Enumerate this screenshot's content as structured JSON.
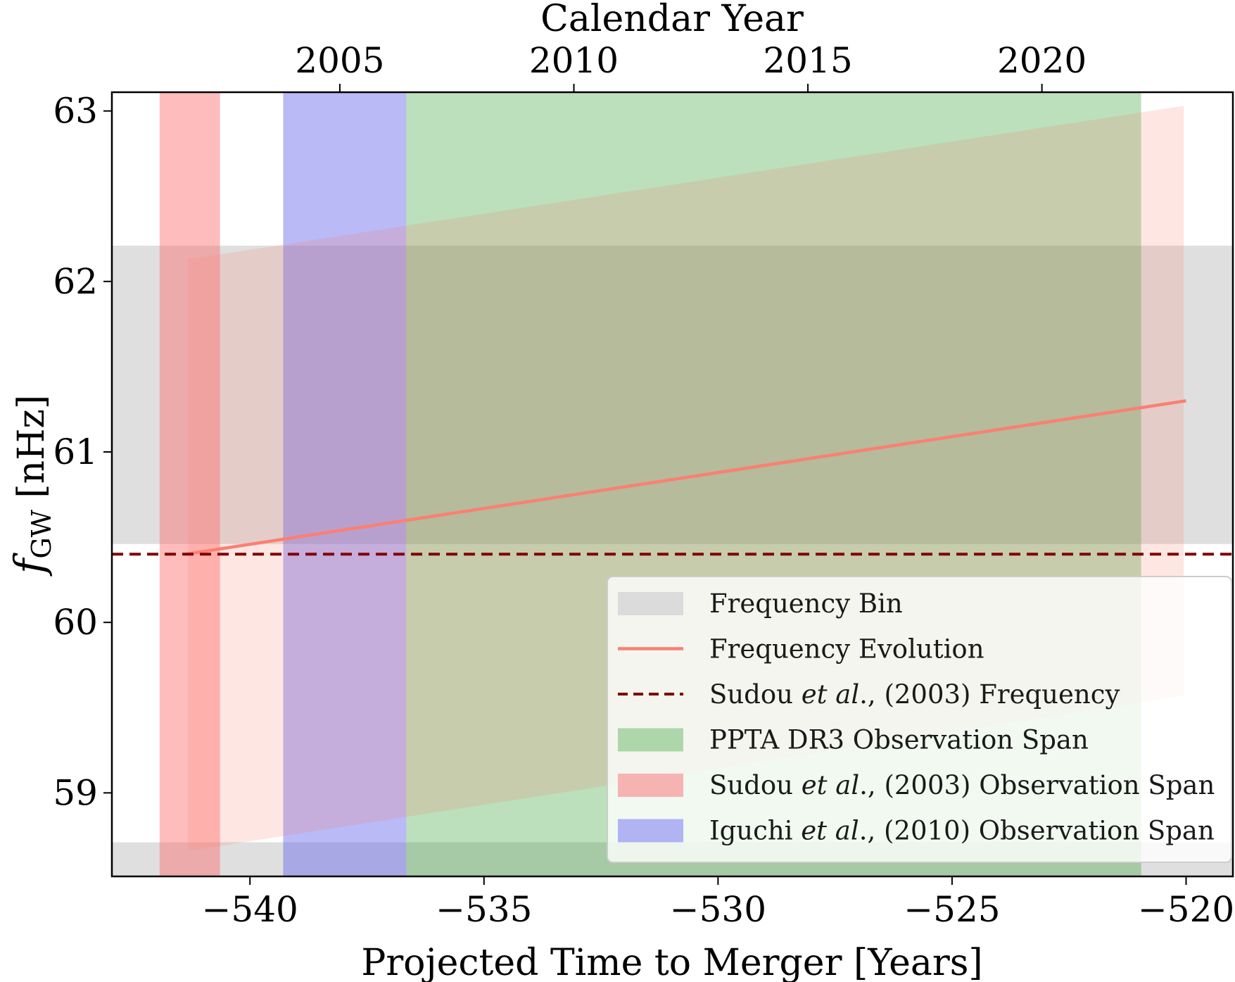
{
  "chart_data": {
    "type": "area",
    "title": "",
    "xlabel": "Projected Time to Merger [Years]",
    "ylabel_main": "f",
    "ylabel_sub": "GW",
    "ylabel_unit": "[nHz]",
    "top_xlabel": "Calendar Year",
    "xlim": [
      -542.95,
      -519.0
    ],
    "ylim": [
      58.51,
      63.11
    ],
    "grid": false,
    "legend_position": "lower-right",
    "x_ticks": [
      {
        "value": -540,
        "label": "−540"
      },
      {
        "value": -535,
        "label": "−535"
      },
      {
        "value": -530,
        "label": "−530"
      },
      {
        "value": -525,
        "label": "−525"
      },
      {
        "value": -520,
        "label": "−520"
      }
    ],
    "y_ticks": [
      {
        "value": 63,
        "label": "63"
      },
      {
        "value": 62,
        "label": "62"
      },
      {
        "value": 61,
        "label": "61"
      },
      {
        "value": 60,
        "label": "60"
      },
      {
        "value": 59,
        "label": "59"
      }
    ],
    "top_ticks": [
      {
        "year": 2005,
        "label": "2005"
      },
      {
        "year": 2010,
        "label": "2010"
      },
      {
        "year": 2015,
        "label": "2015"
      },
      {
        "year": 2020,
        "label": "2020"
      }
    ],
    "year_offset": 2543.08,
    "frequency_bins": [
      {
        "y0": 60.46,
        "y1": 62.21
      },
      {
        "y0": 58.51,
        "y1": 58.71
      }
    ],
    "observation_spans": [
      {
        "name": "PPTA DR3 Observation Span",
        "x0": -536.66,
        "x1": -520.96,
        "color": "#2ca02c",
        "opacity": 0.32
      },
      {
        "name": "Sudou et al., (2003) Observation Span",
        "x0": -541.93,
        "x1": -540.64,
        "color": "#ff6b6b",
        "opacity": 0.45
      },
      {
        "name": "Iguchi et al., (2010) Observation Span",
        "x0": -539.29,
        "x1": -536.66,
        "color": "#6666ee",
        "opacity": 0.45
      }
    ],
    "evolution_band": {
      "x": [
        -541.32,
        -520.05
      ],
      "upper": [
        62.13,
        63.03
      ],
      "lower": [
        58.66,
        59.57
      ]
    },
    "series": [
      {
        "name": "Frequency Evolution",
        "x": [
          -541.38,
          -520.0
        ],
        "y": [
          60.4,
          61.3
        ],
        "color": "#fa8072",
        "style": "solid"
      },
      {
        "name": "Sudou et al., (2003) Frequency",
        "y_const": 60.4,
        "color": "#800000",
        "style": "dashed"
      }
    ],
    "legend": [
      {
        "kind": "patch",
        "label_parts": [
          {
            "t": "Frequency Bin",
            "i": false
          }
        ],
        "color": "#d9d9d9"
      },
      {
        "kind": "line",
        "label_parts": [
          {
            "t": "Frequency Evolution",
            "i": false
          }
        ],
        "color": "#fa8072"
      },
      {
        "kind": "dash",
        "label_parts": [
          {
            "t": "Sudou ",
            "i": false
          },
          {
            "t": "et al",
            "i": true
          },
          {
            "t": "., (2003) Frequency",
            "i": false
          }
        ],
        "color": "#800000"
      },
      {
        "kind": "patch",
        "label_parts": [
          {
            "t": "PPTA DR3 Observation Span",
            "i": false
          }
        ],
        "color": "#a9d4a6"
      },
      {
        "kind": "patch",
        "label_parts": [
          {
            "t": "Sudou ",
            "i": false
          },
          {
            "t": "et al",
            "i": true
          },
          {
            "t": "., (2003) Observation Span",
            "i": false
          }
        ],
        "color": "#f4b0ad"
      },
      {
        "kind": "patch",
        "label_parts": [
          {
            "t": "Iguchi ",
            "i": false
          },
          {
            "t": "et al",
            "i": true
          },
          {
            "t": "., (2010) Observation Span",
            "i": false
          }
        ],
        "color": "#adb0f2"
      }
    ]
  }
}
